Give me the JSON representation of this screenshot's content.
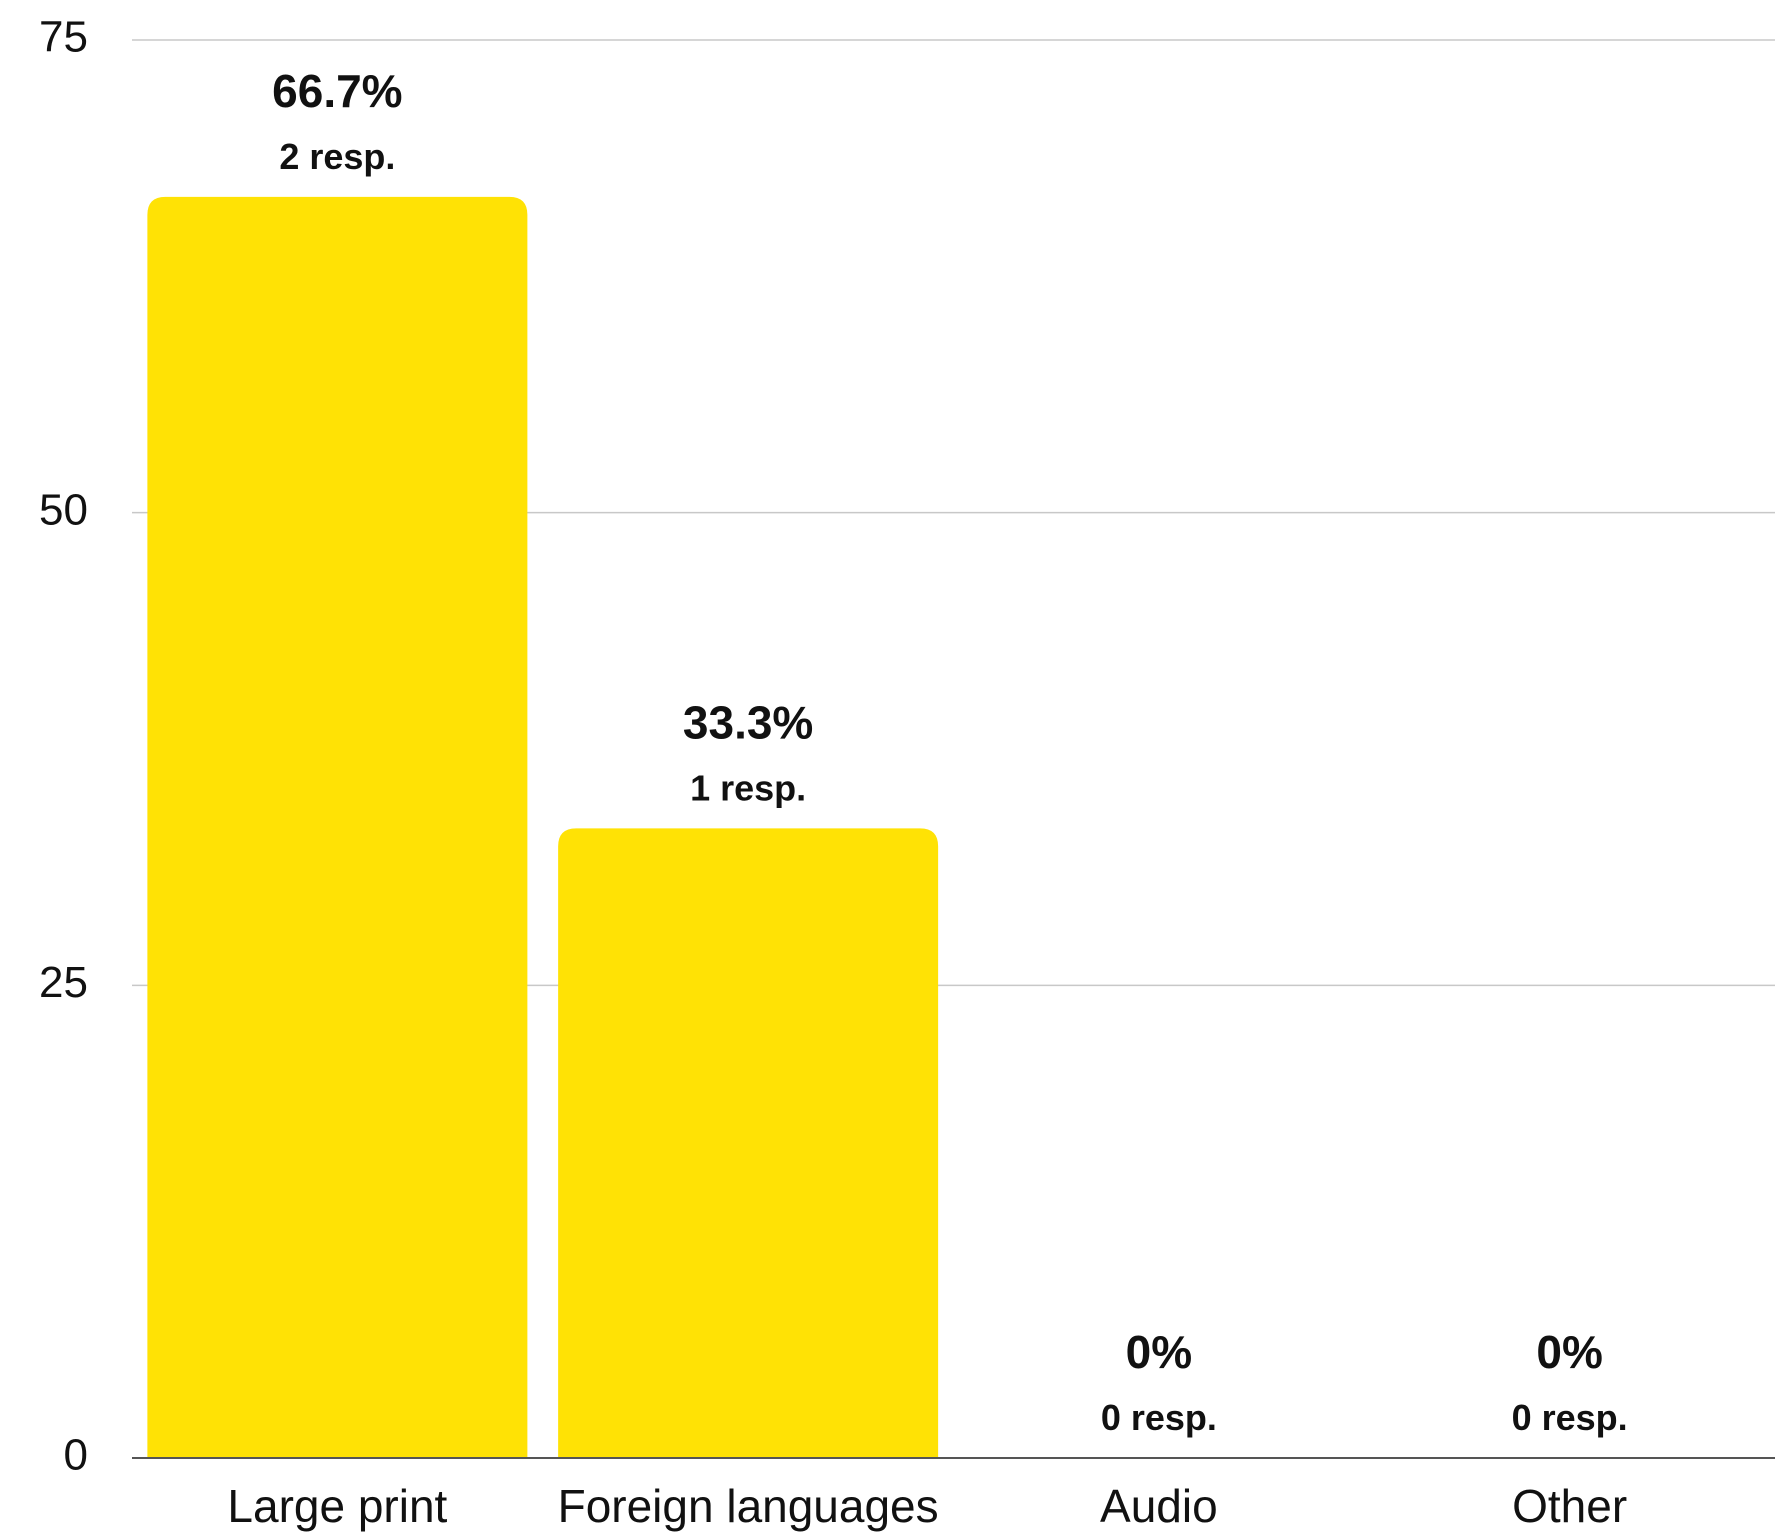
{
  "chart_data": {
    "type": "bar",
    "categories": [
      "Large print",
      "Foreign languages",
      "Audio",
      "Other"
    ],
    "values": [
      66.7,
      33.3,
      0,
      0
    ],
    "data_labels": [
      "66.7%",
      "33.3%",
      "0%",
      "0%"
    ],
    "responses_labels": [
      "2 resp.",
      "1 resp.",
      "0 resp.",
      "0 resp."
    ],
    "ylim": [
      0,
      75
    ],
    "yticks": [
      0,
      25,
      50,
      75
    ],
    "ytick_labels": [
      "0",
      "25",
      "50",
      "75"
    ],
    "grid": true,
    "bar_color": "#FFE205"
  }
}
